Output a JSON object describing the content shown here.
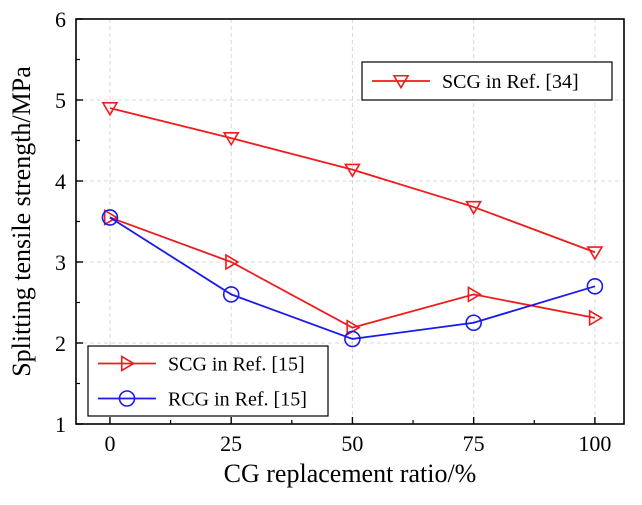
{
  "chart_data": {
    "type": "line",
    "title": "",
    "xlabel": "CG replacement ratio/%",
    "ylabel": "Splitting tensile strength/MPa",
    "x": [
      0,
      25,
      50,
      75,
      100
    ],
    "x_ticks": [
      "0",
      "25",
      "50",
      "75",
      "100"
    ],
    "y_ticks": [
      "1",
      "2",
      "3",
      "4",
      "5",
      "6"
    ],
    "xlim": [
      -7,
      106
    ],
    "ylim": [
      1,
      6
    ],
    "grid": true,
    "series": [
      {
        "name": "SCG in Ref. [34]",
        "marker": "triangle-down",
        "color": "#ee1c1c",
        "values": [
          4.9,
          4.53,
          4.14,
          3.68,
          3.12
        ]
      },
      {
        "name": "SCG in Ref. [15]",
        "marker": "triangle-right",
        "color": "#ee1c1c",
        "values": [
          3.55,
          3.0,
          2.19,
          2.6,
          2.31
        ]
      },
      {
        "name": "RCG in Ref. [15]",
        "marker": "circle",
        "color": "#1a1aee",
        "values": [
          3.55,
          2.6,
          2.05,
          2.25,
          2.7
        ]
      }
    ],
    "legends": [
      {
        "placement": "top-right",
        "entries": [
          "SCG in Ref. [34]"
        ]
      },
      {
        "placement": "bottom-left",
        "entries": [
          "SCG in Ref. [15]",
          "RCG in Ref. [15]"
        ]
      }
    ]
  }
}
